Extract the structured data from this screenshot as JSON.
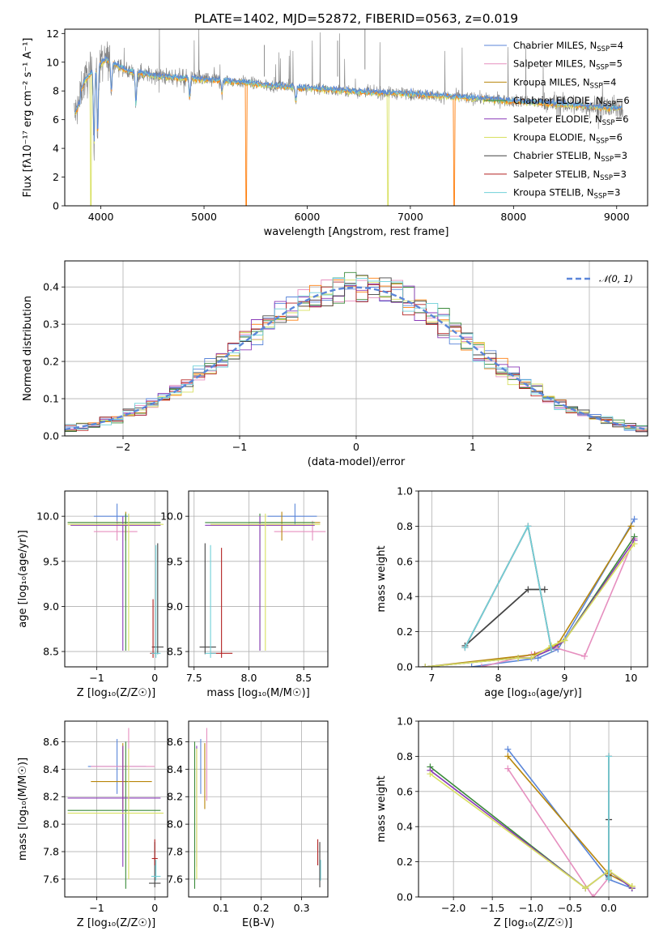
{
  "figure": {
    "title": "PLATE=1402, MJD=52872, FIBERID=0563, z=0.019"
  },
  "colors": {
    "Chabrier MILES": "#5b86d9",
    "Salpeter MILES": "#e68fbf",
    "Kroupa MILES": "#b8860b",
    "Chabrier ELODIE": "#3a8a3a",
    "Salpeter ELODIE": "#8a3ab8",
    "Kroupa ELODIE": "#d8e060",
    "Chabrier STELIB": "#444444",
    "Salpeter STELIB": "#b22222",
    "Kroupa STELIB": "#6fd0d8",
    "orange": "#ff7f0e",
    "data": "#808080"
  },
  "legend_entries": [
    {
      "label": "Chabrier MILES, N",
      "sub": "SSP",
      "tail": "=4",
      "color": "#5b86d9"
    },
    {
      "label": "Salpeter MILES, N",
      "sub": "SSP",
      "tail": "=5",
      "color": "#e68fbf"
    },
    {
      "label": "Kroupa MILES, N",
      "sub": "SSP",
      "tail": "=4",
      "color": "#b8860b"
    },
    {
      "label": "Chabrier ELODIE, N",
      "sub": "SSP",
      "tail": "=6",
      "color": "#3a8a3a"
    },
    {
      "label": "Salpeter ELODIE, N",
      "sub": "SSP",
      "tail": "=6",
      "color": "#8a3ab8"
    },
    {
      "label": "Kroupa ELODIE, N",
      "sub": "SSP",
      "tail": "=6",
      "color": "#d8e060"
    },
    {
      "label": "Chabrier STELIB, N",
      "sub": "SSP",
      "tail": "=3",
      "color": "#444444"
    },
    {
      "label": "Salpeter STELIB, N",
      "sub": "SSP",
      "tail": "=3",
      "color": "#b22222"
    },
    {
      "label": "Kroupa STELIB, N",
      "sub": "SSP",
      "tail": "=3",
      "color": "#6fd0d8"
    }
  ],
  "chart_data": [
    {
      "id": "spectrum",
      "type": "line",
      "xlabel": "wavelength [Angstrom, rest frame]",
      "ylabel": "Flux [fλ10⁻¹⁷ erg cm⁻² s⁻¹ A⁻¹]",
      "xlim": [
        3650,
        9300
      ],
      "ylim": [
        0,
        12.3
      ],
      "xticks": [
        4000,
        5000,
        6000,
        7000,
        8000,
        9000
      ],
      "yticks": [
        0,
        2,
        4,
        6,
        8,
        10,
        12
      ],
      "grid": false,
      "legend_position": "upper-right",
      "model_x": [
        3750,
        3850,
        3950,
        4050,
        4150,
        4250,
        4400,
        4600,
        4800,
        5000,
        5200,
        5400,
        5600,
        5800,
        6000,
        6200,
        6400,
        6600,
        6800,
        7000,
        7200,
        7400,
        7600,
        7800,
        8000,
        8200,
        8400,
        8600,
        8800,
        9000
      ],
      "model_y": [
        7.2,
        8.8,
        9.6,
        10.2,
        9.8,
        9.4,
        9.2,
        9.0,
        8.9,
        8.8,
        8.7,
        8.6,
        8.4,
        8.3,
        8.2,
        8.1,
        8.0,
        7.9,
        7.85,
        7.8,
        7.7,
        7.6,
        7.5,
        7.4,
        7.3,
        7.2,
        7.1,
        7.0,
        6.9,
        6.8
      ]
    },
    {
      "id": "residuals",
      "type": "line",
      "xlabel": "(data-model)/error",
      "ylabel": "Normed distribution",
      "xlim": [
        -2.5,
        2.5
      ],
      "ylim": [
        0,
        0.47
      ],
      "xticks": [
        -2,
        -1,
        0,
        1,
        2
      ],
      "yticks": [
        0.0,
        0.1,
        0.2,
        0.3,
        0.4
      ],
      "grid": true,
      "legend": "𝒩(0, 1)",
      "legend_position": "upper-right",
      "normal_color": "#5b86d9"
    },
    {
      "id": "age-vs-Z",
      "type": "scatter",
      "xlabel": "Z [log₁₀(Z/Z☉)]",
      "ylabel": "age  [log₁₀(age/yr)]",
      "xlim": [
        -1.55,
        0.22
      ],
      "ylim": [
        8.33,
        10.28
      ],
      "xticks": [
        -1,
        0
      ],
      "yticks": [
        8.5,
        9.0,
        9.5,
        10.0
      ],
      "grid": true,
      "points": [
        {
          "series": "Chabrier MILES",
          "x": -0.65,
          "y": 10.0,
          "xerr": [
            0.4,
            0.2
          ],
          "yerr": [
            0.1,
            0.14
          ]
        },
        {
          "series": "Salpeter MILES",
          "x": -0.65,
          "y": 9.83,
          "xerr": [
            0.4,
            0.35
          ],
          "yerr": [
            0.1,
            0.12
          ]
        },
        {
          "series": "Kroupa MILES",
          "x": -0.5,
          "y": 9.93,
          "xerr": [
            1.0,
            0.6
          ],
          "yerr": [
            0.2,
            0.12
          ]
        },
        {
          "series": "Chabrier ELODIE",
          "x": -0.5,
          "y": 9.93,
          "xerr": [
            1.0,
            0.6
          ],
          "yerr": [
            1.42,
            0.1
          ]
        },
        {
          "series": "Salpeter ELODIE",
          "x": -0.55,
          "y": 9.9,
          "xerr": [
            0.9,
            0.65
          ],
          "yerr": [
            1.39,
            0.1
          ]
        },
        {
          "series": "Kroupa ELODIE",
          "x": -0.45,
          "y": 9.91,
          "xerr": [
            1.05,
            0.6
          ],
          "yerr": [
            1.4,
            0.12
          ]
        },
        {
          "series": "Chabrier STELIB",
          "x": 0.05,
          "y": 8.55,
          "xerr": [
            0.1,
            0.1
          ],
          "yerr": [
            0.08,
            1.15
          ]
        },
        {
          "series": "Salpeter STELIB",
          "x": -0.03,
          "y": 8.48,
          "xerr": [
            0.05,
            0.05
          ],
          "yerr": [
            0.05,
            0.6
          ]
        },
        {
          "series": "Kroupa STELIB",
          "x": 0.02,
          "y": 8.48,
          "xerr": [
            0.08,
            0.08
          ],
          "yerr": [
            0.05,
            1.2
          ]
        }
      ]
    },
    {
      "id": "age-vs-mass",
      "type": "scatter",
      "xlabel": "mass [log₁₀(M/M☉)]",
      "ylabel": "",
      "xlim": [
        7.45,
        8.72
      ],
      "ylim": [
        8.33,
        10.28
      ],
      "xticks": [
        7.5,
        8.0,
        8.5
      ],
      "yticks": [
        8.5,
        9.0,
        9.5,
        10.0
      ],
      "grid": true,
      "points": [
        {
          "series": "Chabrier MILES",
          "x": 8.42,
          "y": 10.0,
          "xerr": [
            0.25,
            0.2
          ],
          "yerr": [
            0.1,
            0.14
          ]
        },
        {
          "series": "Salpeter MILES",
          "x": 8.58,
          "y": 9.83,
          "xerr": [
            0.35,
            0.12
          ],
          "yerr": [
            0.1,
            0.12
          ]
        },
        {
          "series": "Kroupa MILES",
          "x": 8.3,
          "y": 9.93,
          "xerr": [
            0.3,
            0.35
          ],
          "yerr": [
            0.2,
            0.12
          ]
        },
        {
          "series": "Chabrier ELODIE",
          "x": 8.1,
          "y": 9.93,
          "xerr": [
            0.5,
            0.5
          ],
          "yerr": [
            1.42,
            0.1
          ]
        },
        {
          "series": "Salpeter ELODIE",
          "x": 8.1,
          "y": 9.9,
          "xerr": [
            0.5,
            0.5
          ],
          "yerr": [
            1.39,
            0.1
          ]
        },
        {
          "series": "Kroupa ELODIE",
          "x": 8.15,
          "y": 9.91,
          "xerr": [
            0.5,
            0.5
          ],
          "yerr": [
            1.4,
            0.12
          ]
        },
        {
          "series": "Chabrier STELIB",
          "x": 7.6,
          "y": 8.55,
          "xerr": [
            0.05,
            0.1
          ],
          "yerr": [
            0.08,
            1.15
          ]
        },
        {
          "series": "Salpeter STELIB",
          "x": 7.75,
          "y": 8.48,
          "xerr": [
            0.1,
            0.1
          ],
          "yerr": [
            0.05,
            1.17
          ]
        },
        {
          "series": "Kroupa STELIB",
          "x": 7.65,
          "y": 8.48,
          "xerr": [
            0.05,
            0.05
          ],
          "yerr": [
            0.05,
            1.2
          ]
        }
      ]
    },
    {
      "id": "mass-weight-vs-age",
      "type": "line",
      "xlabel": "age  [log₁₀(age/yr)]",
      "ylabel": "mass weight",
      "xlim": [
        6.8,
        10.25
      ],
      "ylim": [
        0,
        1.0
      ],
      "xticks": [
        7,
        8,
        9,
        10
      ],
      "yticks": [
        0.0,
        0.2,
        0.4,
        0.6,
        0.8,
        1.0
      ],
      "grid": true,
      "series": [
        {
          "name": "Chabrier MILES",
          "x": [
            7.6,
            8.6,
            8.9,
            10.05
          ],
          "y": [
            0.0,
            0.05,
            0.1,
            0.84
          ]
        },
        {
          "name": "Salpeter MILES",
          "x": [
            7.75,
            8.5,
            8.85,
            9.3,
            10.05
          ],
          "y": [
            0.0,
            0.07,
            0.11,
            0.06,
            0.73
          ]
        },
        {
          "name": "Kroupa MILES",
          "x": [
            6.9,
            8.55,
            8.9,
            10.0
          ],
          "y": [
            0.0,
            0.07,
            0.13,
            0.8
          ]
        },
        {
          "name": "Chabrier ELODIE",
          "x": [
            6.9,
            8.3,
            8.5,
            8.8,
            9.0,
            10.05
          ],
          "y": [
            0.0,
            0.05,
            0.05,
            0.1,
            0.15,
            0.74
          ]
        },
        {
          "name": "Salpeter ELODIE",
          "x": [
            6.9,
            8.3,
            8.5,
            8.8,
            9.0,
            10.05
          ],
          "y": [
            0.0,
            0.05,
            0.05,
            0.1,
            0.15,
            0.72
          ]
        },
        {
          "name": "Kroupa ELODIE",
          "x": [
            6.9,
            8.3,
            8.5,
            8.8,
            9.0,
            10.05
          ],
          "y": [
            0.0,
            0.05,
            0.05,
            0.12,
            0.15,
            0.7
          ]
        },
        {
          "name": "Chabrier STELIB",
          "x": [
            7.5,
            8.45,
            8.7
          ],
          "y": [
            0.12,
            0.44,
            0.44
          ]
        },
        {
          "name": "Salpeter STELIB",
          "x": [
            7.5,
            8.45,
            8.8
          ],
          "y": [
            0.11,
            0.8,
            0.1
          ]
        },
        {
          "name": "Kroupa STELIB",
          "x": [
            7.5,
            8.45,
            8.8
          ],
          "y": [
            0.11,
            0.8,
            0.1
          ]
        }
      ]
    },
    {
      "id": "mass-vs-Z",
      "type": "scatter",
      "xlabel": "Z [log₁₀(Z/Z☉)]",
      "ylabel": "mass [log₁₀(M/M☉)]",
      "xlim": [
        -1.55,
        0.22
      ],
      "ylim": [
        7.47,
        8.75
      ],
      "xticks": [
        -1,
        0
      ],
      "yticks": [
        7.6,
        7.8,
        8.0,
        8.2,
        8.4,
        8.6
      ],
      "grid": true,
      "points": [
        {
          "series": "Chabrier MILES",
          "x": -0.65,
          "y": 8.42,
          "xerr": [
            0.5,
            0.5
          ],
          "yerr": [
            0.2,
            0.2
          ]
        },
        {
          "series": "Salpeter MILES",
          "x": -0.45,
          "y": 8.42,
          "xerr": [
            0.65,
            0.45
          ],
          "yerr": [
            0.25,
            0.28
          ]
        },
        {
          "series": "Kroupa MILES",
          "x": -0.55,
          "y": 8.31,
          "xerr": [
            0.55,
            0.5
          ],
          "yerr": [
            0.2,
            0.28
          ]
        },
        {
          "series": "Chabrier ELODIE",
          "x": -0.5,
          "y": 8.1,
          "xerr": [
            1.0,
            0.6
          ],
          "yerr": [
            0.57,
            0.5
          ]
        },
        {
          "series": "Salpeter ELODIE",
          "x": -0.55,
          "y": 8.19,
          "xerr": [
            0.95,
            0.65
          ],
          "yerr": [
            0.5,
            0.38
          ]
        },
        {
          "series": "Kroupa ELODIE",
          "x": -0.45,
          "y": 8.08,
          "xerr": [
            1.05,
            0.6
          ],
          "yerr": [
            0.48,
            0.47
          ]
        },
        {
          "series": "Chabrier STELIB",
          "x": 0.0,
          "y": 7.57,
          "xerr": [
            0.1,
            0.1
          ],
          "yerr": [
            0.03,
            0.3
          ]
        },
        {
          "series": "Salpeter STELIB",
          "x": 0.0,
          "y": 7.75,
          "xerr": [
            0.05,
            0.05
          ],
          "yerr": [
            0.05,
            0.14
          ]
        },
        {
          "series": "Kroupa STELIB",
          "x": 0.02,
          "y": 7.62,
          "xerr": [
            0.08,
            0.08
          ],
          "yerr": [
            0.03,
            0.12
          ]
        }
      ]
    },
    {
      "id": "mass-vs-ebv",
      "type": "scatter",
      "xlabel": "E(B-V)",
      "ylabel": "",
      "xlim": [
        0.02,
        0.365
      ],
      "ylim": [
        7.47,
        8.75
      ],
      "xticks": [
        0.1,
        0.2,
        0.3
      ],
      "yticks": [
        7.6,
        7.8,
        8.0,
        8.2,
        8.4,
        8.6
      ],
      "grid": true,
      "points": [
        {
          "series": "Chabrier MILES",
          "x": 0.05,
          "y": 8.42,
          "xerr": [
            0,
            0
          ],
          "yerr": [
            0.2,
            0.2
          ]
        },
        {
          "series": "Salpeter MILES",
          "x": 0.065,
          "y": 8.42,
          "xerr": [
            0,
            0
          ],
          "yerr": [
            0.25,
            0.28
          ]
        },
        {
          "series": "Kroupa MILES",
          "x": 0.06,
          "y": 8.31,
          "xerr": [
            0,
            0
          ],
          "yerr": [
            0.2,
            0.28
          ]
        },
        {
          "series": "Chabrier ELODIE",
          "x": 0.035,
          "y": 8.1,
          "xerr": [
            0,
            0
          ],
          "yerr": [
            0.57,
            0.5
          ]
        },
        {
          "series": "Salpeter ELODIE",
          "x": 0.04,
          "y": 8.19,
          "xerr": [
            0,
            0
          ],
          "yerr": [
            0.5,
            0.38
          ]
        },
        {
          "series": "Kroupa ELODIE",
          "x": 0.04,
          "y": 8.08,
          "xerr": [
            0,
            0
          ],
          "yerr": [
            0.48,
            0.47
          ]
        },
        {
          "series": "Chabrier STELIB",
          "x": 0.345,
          "y": 7.57,
          "xerr": [
            0,
            0
          ],
          "yerr": [
            0.03,
            0.3
          ]
        },
        {
          "series": "Salpeter STELIB",
          "x": 0.34,
          "y": 7.75,
          "xerr": [
            0,
            0
          ],
          "yerr": [
            0.05,
            0.14
          ]
        },
        {
          "series": "Kroupa STELIB",
          "x": 0.347,
          "y": 7.62,
          "xerr": [
            0,
            0
          ],
          "yerr": [
            0.03,
            0.12
          ]
        }
      ]
    },
    {
      "id": "mass-weight-vs-Z",
      "type": "line",
      "xlabel": "Z [log₁₀(Z/Z☉)]",
      "ylabel": "mass weight",
      "xlim": [
        -2.45,
        0.5
      ],
      "ylim": [
        0,
        1.0
      ],
      "xticks": [
        -2.0,
        -1.5,
        -1.0,
        -0.5,
        0.0
      ],
      "yticks": [
        0.0,
        0.2,
        0.4,
        0.6,
        0.8,
        1.0
      ],
      "grid": true,
      "series": [
        {
          "name": "Chabrier MILES",
          "x": [
            -1.3,
            0.0,
            0.3
          ],
          "y": [
            0.84,
            0.1,
            0.05
          ]
        },
        {
          "name": "Salpeter MILES",
          "x": [
            -1.3,
            -0.2,
            0.0
          ],
          "y": [
            0.73,
            0.0,
            0.11
          ]
        },
        {
          "name": "Kroupa MILES",
          "x": [
            -1.3,
            0.0,
            0.3
          ],
          "y": [
            0.8,
            0.13,
            0.06
          ]
        },
        {
          "name": "Chabrier ELODIE",
          "x": [
            -2.3,
            -0.3,
            0.0,
            0.3
          ],
          "y": [
            0.74,
            0.05,
            0.15,
            0.05
          ]
        },
        {
          "name": "Salpeter ELODIE",
          "x": [
            -2.3,
            -0.3,
            0.0,
            0.3
          ],
          "y": [
            0.72,
            0.05,
            0.15,
            0.05
          ]
        },
        {
          "name": "Kroupa ELODIE",
          "x": [
            -2.3,
            -0.3,
            0.0,
            0.3
          ],
          "y": [
            0.7,
            0.05,
            0.15,
            0.06
          ]
        },
        {
          "name": "Chabrier STELIB",
          "x": [
            0.0,
            0.0,
            0.0
          ],
          "y": [
            0.12,
            0.44,
            0.44
          ]
        },
        {
          "name": "Salpeter STELIB",
          "x": [
            0.0,
            0.0,
            0.0
          ],
          "y": [
            0.11,
            0.8,
            0.1
          ]
        },
        {
          "name": "Kroupa STELIB",
          "x": [
            0.0,
            0.0,
            0.0
          ],
          "y": [
            0.11,
            0.8,
            0.1
          ]
        }
      ]
    }
  ]
}
